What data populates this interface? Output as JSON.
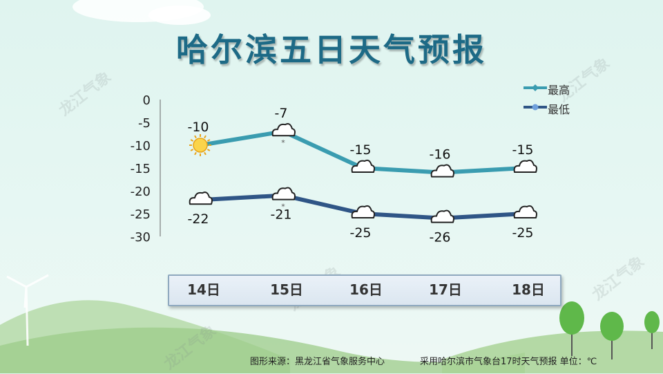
{
  "title": "哈尔滨五日天气预报",
  "watermark": "龙江气象",
  "legend": {
    "high": "最高",
    "low": "最低"
  },
  "colors": {
    "high": "#3a9cb0",
    "low": "#2f5586",
    "title": "#1d6a86"
  },
  "chart_data": {
    "type": "line",
    "categories": [
      "14日",
      "15日",
      "16日",
      "17日",
      "18日"
    ],
    "series": [
      {
        "name": "最高",
        "values": [
          -10,
          -7,
          -15,
          -16,
          -15
        ]
      },
      {
        "name": "最低",
        "values": [
          -22,
          -21,
          -25,
          -26,
          -25
        ]
      }
    ],
    "yticks": [
      "0",
      "-5",
      "-10",
      "-15",
      "-20",
      "-25",
      "-30"
    ],
    "ylim": [
      -30,
      0
    ],
    "weather_icons": {
      "high": [
        "sun-icon",
        "snow-cloud-icon",
        "cloud-icon",
        "cloud-icon",
        "cloud-icon"
      ],
      "low": [
        "cloud-icon",
        "snow-cloud-icon",
        "cloud-icon",
        "cloud-icon",
        "cloud-icon"
      ]
    }
  },
  "footer": {
    "source": "图形来源：黑龙江省气象服务中心",
    "note": "采用哈尔滨市气象台17时天气预报 单位：℃"
  }
}
